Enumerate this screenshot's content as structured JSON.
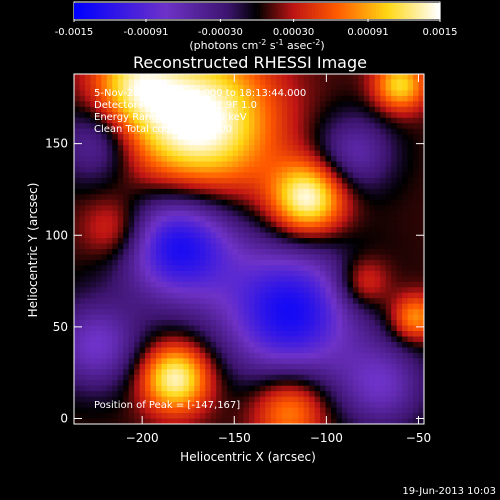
{
  "chart_data": {
    "type": "heatmap",
    "title": "Reconstructed RHESSI Image",
    "xlabel": "Heliocentric X (arcsec)",
    "ylabel": "Heliocentric Y (arcsec)",
    "xlim": [
      -237,
      -47
    ],
    "ylim": [
      -3,
      188
    ],
    "xticks": [
      -200,
      -150,
      -100,
      -50
    ],
    "yticks": [
      0,
      50,
      100,
      150
    ],
    "colorbar": {
      "ticks": [
        -0.0015,
        -0.00091,
        -0.0003,
        0.0003,
        0.00091,
        0.0015
      ],
      "tick_labels": [
        "-0.0015",
        "-0.00091",
        "-0.00030",
        "0.00030",
        "0.00091",
        "0.0015"
      ],
      "label": "(photons cm",
      "label_exp1": "-2",
      "label_mid": " s",
      "label_exp2": "-1",
      "label_end": " asec",
      "label_exp3": "-2",
      "label_close": ")",
      "range": [
        -0.0015,
        0.0015
      ]
    },
    "annotations": [
      " 5-Nov-2004 18:10:42.000 to 18:13:44.000",
      "Detectors: 4F 5F 6F 7F 8F 9F 1.0",
      "Energy Range: 25.0 - 50.0 keV",
      "Clean    Total counts = 17000"
    ],
    "peak_label": "Position of Peak = [-147,167]",
    "peak": [
      -147,
      167
    ],
    "grid": false
  },
  "footer_date": "19-Jun-2013 10:03"
}
